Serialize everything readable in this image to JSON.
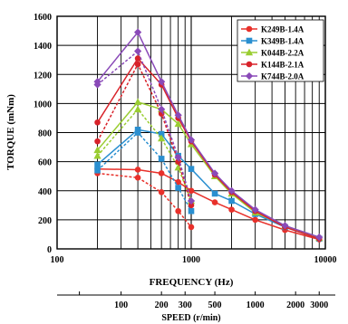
{
  "chart_data": {
    "type": "line",
    "title": "",
    "xlabel": "FREQUENCY (Hz)",
    "ylabel": "TORQUE (mNm)",
    "secondary_xlabel": "SPEED (r/min)",
    "xscale": "log",
    "xlim": [
      100,
      10000
    ],
    "ylim": [
      0,
      1600
    ],
    "grid": true,
    "legend_position": "top-right",
    "x_ticks": [
      {
        "value": 100,
        "label": "100"
      },
      {
        "value": 1000,
        "label": "1000"
      },
      {
        "value": 10000,
        "label": "10000"
      }
    ],
    "y_ticks": [
      {
        "value": 0,
        "label": "0"
      },
      {
        "value": 200,
        "label": "200"
      },
      {
        "value": 400,
        "label": "400"
      },
      {
        "value": 600,
        "label": "600"
      },
      {
        "value": 800,
        "label": "800"
      },
      {
        "value": 1000,
        "label": "1000"
      },
      {
        "value": 1200,
        "label": "1200"
      },
      {
        "value": 1400,
        "label": "1400"
      },
      {
        "value": 1600,
        "label": "1600"
      }
    ],
    "speed_ticks": [
      {
        "label": "100",
        "freq": 300
      },
      {
        "label": "200",
        "freq": 600
      },
      {
        "label": "300",
        "freq": 900
      },
      {
        "label": "500",
        "freq": 1500
      },
      {
        "label": "1000",
        "freq": 3000
      },
      {
        "label": "2000",
        "freq": 6000
      },
      {
        "label": "3000",
        "freq": 9000
      }
    ],
    "series": [
      {
        "name": "K249B-1.4A",
        "color": "#e8302a",
        "marker": "circle",
        "solid": {
          "x": [
            200,
            400,
            600,
            800,
            1000,
            1500,
            2000,
            3000,
            5000,
            9000
          ],
          "y": [
            550,
            545,
            520,
            460,
            400,
            320,
            270,
            200,
            130,
            65
          ]
        },
        "dashed": {
          "x": [
            200,
            400,
            600,
            800,
            1000
          ],
          "y": [
            520,
            490,
            390,
            260,
            150
          ]
        }
      },
      {
        "name": "K349B-1.4A",
        "color": "#2a8fd0",
        "marker": "square",
        "solid": {
          "x": [
            200,
            400,
            600,
            800,
            1000,
            1500,
            2000,
            3000,
            5000,
            9000
          ],
          "y": [
            580,
            820,
            790,
            640,
            550,
            380,
            330,
            240,
            150,
            70
          ]
        },
        "dashed": {
          "x": [
            200,
            400,
            600,
            800,
            1000
          ],
          "y": [
            540,
            800,
            620,
            420,
            260
          ]
        }
      },
      {
        "name": "K044B-2.2A",
        "color": "#9acd32",
        "marker": "triangle",
        "solid": {
          "x": [
            200,
            400,
            600,
            800,
            1000,
            1500,
            2000,
            3000,
            5000,
            9000
          ],
          "y": [
            680,
            1010,
            960,
            860,
            720,
            500,
            380,
            250,
            160,
            75
          ]
        },
        "dashed": {
          "x": [
            200,
            400,
            600,
            800,
            1000
          ],
          "y": [
            640,
            960,
            760,
            560,
            330
          ]
        }
      },
      {
        "name": "K144B-2.1A",
        "color": "#d8232a",
        "marker": "circle",
        "solid": {
          "x": [
            200,
            400,
            600,
            800,
            1000,
            1500,
            2000,
            3000,
            5000,
            9000
          ],
          "y": [
            870,
            1310,
            1130,
            900,
            740,
            510,
            390,
            260,
            150,
            70
          ]
        },
        "dashed": {
          "x": [
            200,
            400,
            600,
            800,
            1000
          ],
          "y": [
            740,
            1270,
            930,
            600,
            300
          ]
        }
      },
      {
        "name": "K744B-2.0A",
        "color": "#8a4ab8",
        "marker": "diamond",
        "solid": {
          "x": [
            200,
            400,
            600,
            800,
            1000,
            1500,
            2000,
            3000,
            5000,
            9000
          ],
          "y": [
            1150,
            1490,
            1150,
            920,
            750,
            520,
            400,
            270,
            160,
            80
          ]
        },
        "dashed": {
          "x": [
            200,
            400,
            600,
            800,
            1000
          ],
          "y": [
            1130,
            1360,
            960,
            630,
            330
          ]
        }
      }
    ]
  }
}
